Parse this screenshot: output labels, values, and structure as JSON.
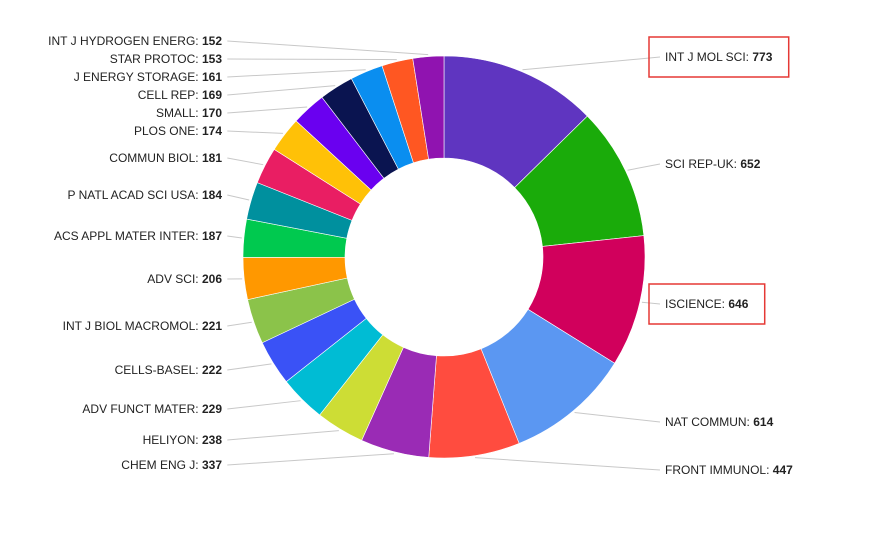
{
  "chart_data": {
    "type": "pie",
    "variant": "donut",
    "title": "",
    "slices": [
      {
        "label": "INT J MOL SCI",
        "value": 773,
        "color": "#5f35c0",
        "highlight": true
      },
      {
        "label": "SCI REP-UK",
        "value": 652,
        "color": "#1aab0a"
      },
      {
        "label": "ISCIENCE",
        "value": 646,
        "color": "#d1005c",
        "highlight": true
      },
      {
        "label": "NAT COMMUN",
        "value": 614,
        "color": "#5b97f2"
      },
      {
        "label": "FRONT IMMUNOL",
        "value": 447,
        "color": "#ff4c3f"
      },
      {
        "label": "CHEM ENG J",
        "value": 337,
        "color": "#9a2bb5"
      },
      {
        "label": "HELIYON",
        "value": 238,
        "color": "#cddd35"
      },
      {
        "label": "ADV FUNCT MATER",
        "value": 229,
        "color": "#00bcd4"
      },
      {
        "label": "CELLS-BASEL",
        "value": 222,
        "color": "#3a52f6"
      },
      {
        "label": "INT J BIOL MACROMOL",
        "value": 221,
        "color": "#8bc34a"
      },
      {
        "label": "ADV SCI",
        "value": 206,
        "color": "#ff9800"
      },
      {
        "label": "ACS APPL MATER INTER",
        "value": 187,
        "color": "#00c94f"
      },
      {
        "label": "P NATL ACAD SCI USA",
        "value": 184,
        "color": "#00909e"
      },
      {
        "label": "COMMUN BIOL",
        "value": 181,
        "color": "#e91e63"
      },
      {
        "label": "PLOS ONE",
        "value": 174,
        "color": "#ffc107"
      },
      {
        "label": "SMALL",
        "value": 170,
        "color": "#6a00f0"
      },
      {
        "label": "CELL REP",
        "value": 169,
        "color": "#0a1450"
      },
      {
        "label": "J ENERGY STORAGE",
        "value": 161,
        "color": "#0a8ef0"
      },
      {
        "label": "STAR PROTOC",
        "value": 153,
        "color": "#ff5722"
      },
      {
        "label": "INT J HYDROGEN ENERG",
        "value": 152,
        "color": "#9013b0"
      }
    ],
    "legend": "none"
  }
}
